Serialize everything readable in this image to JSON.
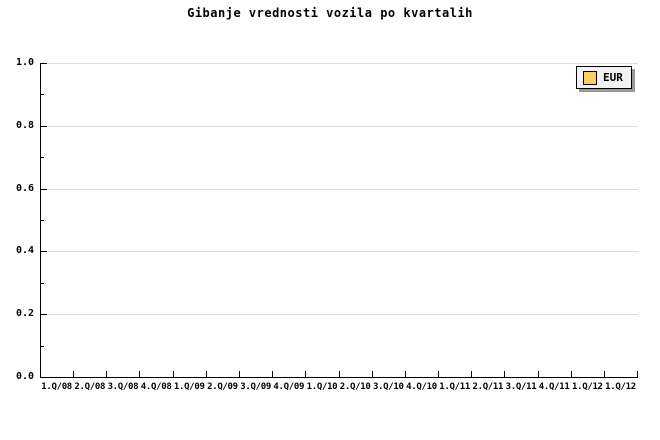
{
  "title": "Gibanje vrednosti vozila po kvartalih",
  "legend": {
    "items": [
      {
        "label": "EUR",
        "swatch_color": "#ffcc66"
      }
    ],
    "position": "top-right"
  },
  "colors": {
    "gridline": "#dcdcdc",
    "axis": "#000000",
    "background": "#ffffff",
    "text": "#000000",
    "legend_bg": "#f2f2f2",
    "legend_shadow": "#999999",
    "swatch": "#ffcc66"
  },
  "chart_data": {
    "type": "line",
    "title": "Gibanje vrednosti vozila po kvartalih",
    "categories": [
      "1.Q/08",
      "2.Q/08",
      "3.Q/08",
      "4.Q/08",
      "1.Q/09",
      "2.Q/09",
      "3.Q/09",
      "4.Q/09",
      "1.Q/10",
      "2.Q/10",
      "3.Q/10",
      "4.Q/10",
      "1.Q/11",
      "2.Q/11",
      "3.Q/11",
      "4.Q/11",
      "1.Q/12",
      "1.Q/12"
    ],
    "series": [
      {
        "name": "EUR",
        "color": "#ffcc66",
        "values": []
      }
    ],
    "xlabel": "",
    "ylabel": "",
    "ylim": [
      0.0,
      1.0
    ],
    "yticks": [
      1.0,
      0.8,
      0.6,
      0.4,
      0.2,
      0.0
    ],
    "ytick_labels": [
      "1.0",
      "0.8",
      "0.6",
      "0.4",
      "0.2",
      "0.0"
    ],
    "minor_yticks_interval": 0.1,
    "grid": "horizontal",
    "legend_position": "top-right"
  }
}
